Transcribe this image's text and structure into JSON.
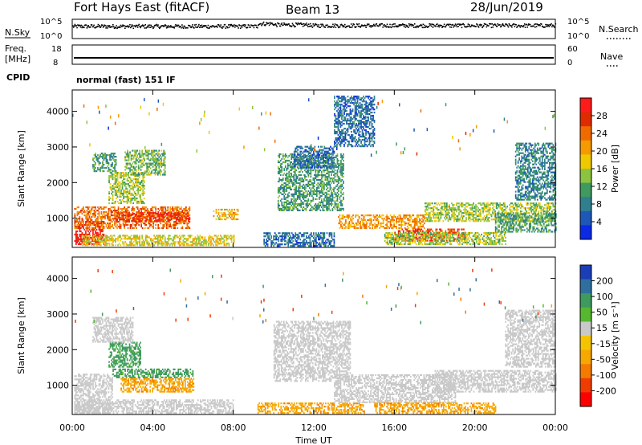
{
  "header": {
    "station": "Fort Hays East (fitACF)",
    "beam": "Beam 13",
    "date": "28/Jun/2019"
  },
  "top_panels": {
    "noise_left_label": "N.Sky",
    "noise_right_label": "N.Search",
    "noise_left_ticks": [
      "10^5",
      "10^0"
    ],
    "noise_right_ticks": [
      "10^5",
      "10^0"
    ],
    "freq_label_1": "Freq.",
    "freq_label_2": "[MHz]",
    "freq_ticks": [
      "18",
      "8"
    ],
    "nave_label": "Nave",
    "nave_ticks": [
      "60",
      "0"
    ],
    "cpid_label": "CPID",
    "cpid_text": "normal (fast) 151 IF"
  },
  "colors": {
    "power_scale": [
      "#0a2ae6",
      "#1d57b7",
      "#2f7f8f",
      "#3f9a5f",
      "#8cc43f",
      "#f0c800",
      "#f59a00",
      "#f06a00",
      "#e02a00",
      "#ff1b1b"
    ],
    "velocity_scale": [
      "#ff0000",
      "#f03c00",
      "#f47b00",
      "#f6a800",
      "#f5c400",
      "#c9c9c9",
      "#55b830",
      "#3f9a5f",
      "#2f6fa0",
      "#1a3db8"
    ]
  },
  "chart_data": [
    {
      "type": "scatter",
      "title": "N.Sky / N.Search",
      "ylim_log10": [
        0,
        5
      ],
      "ticks": [
        "10^0",
        "10^5"
      ],
      "segments": [
        {
          "t_start_h": 0.0,
          "t_end_h": 9.2,
          "log10_noise": 3.1
        },
        {
          "t_start_h": 9.2,
          "t_end_h": 10.0,
          "log10_noise": 3.8
        },
        {
          "t_start_h": 10.0,
          "t_end_h": 11.8,
          "log10_noise": 3.5
        },
        {
          "t_start_h": 11.8,
          "t_end_h": 24.0,
          "log10_noise": 3.3
        }
      ]
    },
    {
      "type": "line",
      "title": "Freq. [MHz] / Nave",
      "ylim": [
        8,
        18
      ],
      "ticks": [
        "8",
        "18"
      ],
      "values": [
        {
          "t_h": 0.0,
          "freq_mhz": 10.2
        },
        {
          "t_h": 24.0,
          "freq_mhz": 10.2
        }
      ],
      "nave_range": [
        0,
        60
      ]
    },
    {
      "type": "heatmap",
      "title": "Power [dB]",
      "xlabel": "",
      "ylabel": "Slant Range [km]",
      "xlim_hours": [
        0,
        24
      ],
      "ylim_km": [
        180,
        4600
      ],
      "yticks": [
        "1000",
        "2000",
        "3000",
        "4000"
      ],
      "colorbar_label": "Power [dB]",
      "colorbar_ticks": [
        "4",
        "8",
        "12",
        "16",
        "20",
        "24",
        "28"
      ],
      "colorbar_range": [
        0,
        30
      ],
      "patches": [
        {
          "t0": 0.1,
          "t1": 1.6,
          "r0": 250,
          "r1": 900,
          "level": 28
        },
        {
          "t0": 0.1,
          "t1": 5.8,
          "r0": 700,
          "r1": 1300,
          "level": 22
        },
        {
          "t0": 2.2,
          "t1": 5.8,
          "r0": 900,
          "r1": 1150,
          "level": 26
        },
        {
          "t0": 1.8,
          "t1": 3.6,
          "r0": 1400,
          "r1": 2300,
          "level": 14
        },
        {
          "t0": 2.6,
          "t1": 4.6,
          "r0": 2200,
          "r1": 2900,
          "level": 12
        },
        {
          "t0": 1.0,
          "t1": 2.2,
          "r0": 2300,
          "r1": 2800,
          "level": 10
        },
        {
          "t0": 0.5,
          "t1": 8.0,
          "r0": 220,
          "r1": 500,
          "level": 16
        },
        {
          "t0": 7.0,
          "t1": 8.2,
          "r0": 950,
          "r1": 1250,
          "level": 18
        },
        {
          "t0": 10.2,
          "t1": 13.5,
          "r0": 1200,
          "r1": 2800,
          "level": 10
        },
        {
          "t0": 11.0,
          "t1": 13.0,
          "r0": 2400,
          "r1": 3000,
          "level": 6
        },
        {
          "t0": 9.5,
          "t1": 13.0,
          "r0": 200,
          "r1": 600,
          "level": 6
        },
        {
          "t0": 13.2,
          "t1": 17.5,
          "r0": 700,
          "r1": 1100,
          "level": 20
        },
        {
          "t0": 16.0,
          "t1": 19.5,
          "r0": 350,
          "r1": 700,
          "level": 26
        },
        {
          "t0": 15.5,
          "t1": 21.5,
          "r0": 250,
          "r1": 600,
          "level": 14
        },
        {
          "t0": 17.5,
          "t1": 24.0,
          "r0": 900,
          "r1": 1400,
          "level": 14
        },
        {
          "t0": 21.0,
          "t1": 24.0,
          "r0": 600,
          "r1": 1100,
          "level": 10
        },
        {
          "t0": 22.0,
          "t1": 24.0,
          "r0": 1500,
          "r1": 3100,
          "level": 8
        },
        {
          "t0": 13.0,
          "t1": 15.0,
          "r0": 3000,
          "r1": 4400,
          "level": 6
        }
      ]
    },
    {
      "type": "heatmap",
      "title": "Velocity [m s^-1]",
      "xlabel": "Time UT",
      "ylabel": "Slant Range [km]",
      "xlim_hours": [
        0,
        24
      ],
      "ylim_km": [
        180,
        4600
      ],
      "xticks": [
        "00:00",
        "04:00",
        "08:00",
        "12:00",
        "16:00",
        "20:00",
        "00:00"
      ],
      "yticks": [
        "1000",
        "2000",
        "3000",
        "4000"
      ],
      "colorbar_label": "Velocity [m s⁻¹]",
      "colorbar_ticks": [
        "200",
        "100",
        "50",
        "15",
        "-15",
        "-50",
        "-100",
        "-200"
      ],
      "colorbar_range": [
        -250,
        250
      ],
      "patches": [
        {
          "t0": 0.1,
          "t1": 2.0,
          "r0": 200,
          "r1": 1300,
          "value": 0
        },
        {
          "t0": 2.0,
          "t1": 6.0,
          "r0": 1200,
          "r1": 1450,
          "value": 60
        },
        {
          "t0": 2.4,
          "t1": 6.0,
          "r0": 800,
          "r1": 1200,
          "value": -40
        },
        {
          "t0": 1.8,
          "t1": 3.4,
          "r0": 1500,
          "r1": 2200,
          "value": 60
        },
        {
          "t0": 1.0,
          "t1": 3.0,
          "r0": 2200,
          "r1": 2900,
          "value": 0
        },
        {
          "t0": 0.1,
          "t1": 8.0,
          "r0": 200,
          "r1": 600,
          "value": 0
        },
        {
          "t0": 9.2,
          "t1": 14.5,
          "r0": 200,
          "r1": 500,
          "value": -40
        },
        {
          "t0": 10.0,
          "t1": 13.8,
          "r0": 1100,
          "r1": 2800,
          "value": 0
        },
        {
          "t0": 13.0,
          "t1": 19.0,
          "r0": 500,
          "r1": 1300,
          "value": 0
        },
        {
          "t0": 18.0,
          "t1": 24.0,
          "r0": 800,
          "r1": 1400,
          "value": 0
        },
        {
          "t0": 15.0,
          "t1": 21.0,
          "r0": 200,
          "r1": 500,
          "value": -40
        },
        {
          "t0": 21.5,
          "t1": 24.0,
          "r0": 1500,
          "r1": 3100,
          "value": 0
        }
      ]
    }
  ]
}
